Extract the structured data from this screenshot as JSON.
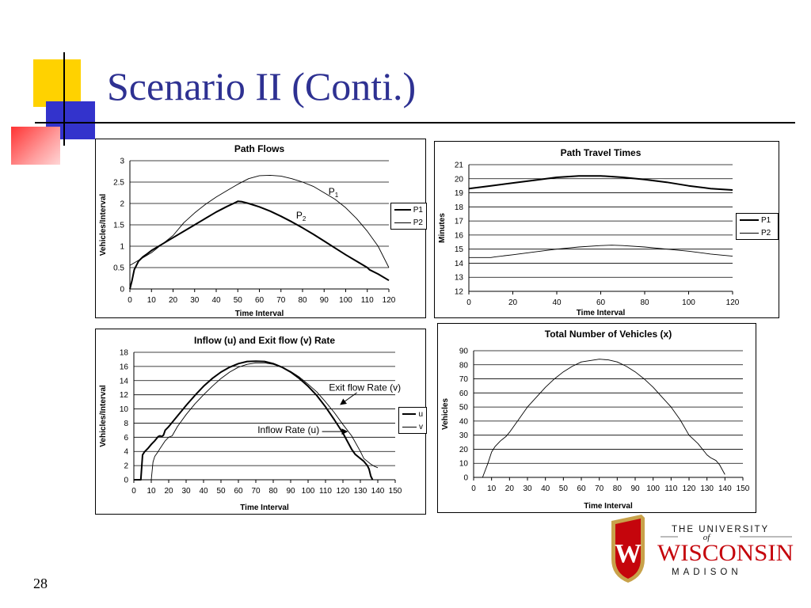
{
  "slide": {
    "title": "Scenario II (Conti.)",
    "page_number": "28"
  },
  "colors": {
    "title": "#2e3192",
    "deco_yellow": "#ffd200",
    "deco_blue": "#3333cc",
    "deco_red": "#ff3333",
    "logo_red": "#c5050c",
    "logo_gold": "#c8a24a"
  },
  "logo": {
    "line1": "THE UNIVERSITY",
    "line2": "of",
    "line3": "WISCONSIN",
    "line4": "MADISON",
    "crest_letter": "W",
    "icon": "university-crest-icon"
  },
  "chart_data": [
    {
      "id": "path-flows",
      "type": "line",
      "title": "Path Flows",
      "xlabel": "Time Interval",
      "ylabel": "Vehicles/Interval",
      "xlim": [
        0,
        120
      ],
      "ylim": [
        0,
        3
      ],
      "xticks": [
        0,
        10,
        20,
        30,
        40,
        50,
        60,
        70,
        80,
        90,
        100,
        110,
        120
      ],
      "yticks": [
        0,
        0.5,
        1,
        1.5,
        2,
        2.5,
        3
      ],
      "ytick_labels": [
        "0",
        "0.5",
        "1",
        "1.5",
        "2",
        "2.5",
        "3"
      ],
      "grid": "horizontal",
      "legend_position": "right",
      "series": [
        {
          "name": "P1",
          "style": "bold",
          "x": [
            0,
            1,
            2,
            4,
            6,
            8,
            10,
            15,
            20,
            25,
            30,
            35,
            40,
            45,
            48,
            50,
            52,
            55,
            60,
            65,
            70,
            75,
            80,
            85,
            90,
            95,
            100,
            105,
            110,
            111,
            115,
            120
          ],
          "y": [
            0,
            0.2,
            0.45,
            0.65,
            0.75,
            0.82,
            0.9,
            1.05,
            1.2,
            1.35,
            1.5,
            1.65,
            1.8,
            1.93,
            2.0,
            2.05,
            2.04,
            2.0,
            1.92,
            1.82,
            1.7,
            1.57,
            1.43,
            1.28,
            1.12,
            0.96,
            0.8,
            0.65,
            0.5,
            0.45,
            0.35,
            0.2
          ]
        },
        {
          "name": "P2",
          "style": "thin",
          "x": [
            0,
            5,
            10,
            15,
            20,
            25,
            30,
            35,
            40,
            45,
            50,
            55,
            60,
            65,
            70,
            75,
            80,
            85,
            90,
            95,
            100,
            105,
            110,
            115,
            120
          ],
          "y": [
            0.55,
            0.7,
            0.85,
            1.05,
            1.25,
            1.55,
            1.78,
            1.98,
            2.15,
            2.3,
            2.45,
            2.58,
            2.65,
            2.66,
            2.64,
            2.58,
            2.5,
            2.4,
            2.25,
            2.1,
            1.9,
            1.65,
            1.35,
            1.0,
            0.5
          ]
        }
      ],
      "annotations": [
        {
          "text": "P",
          "sub": "1",
          "at_x": 92,
          "at_y": 2.2
        },
        {
          "text": "P",
          "sub": "2",
          "at_x": 77,
          "at_y": 1.65
        }
      ]
    },
    {
      "id": "path-travel-times",
      "type": "line",
      "title": "Path Travel Times",
      "xlabel": "Time Interval",
      "ylabel": "Minutes",
      "xlim": [
        0,
        120
      ],
      "ylim": [
        12,
        21
      ],
      "xticks": [
        0,
        20,
        40,
        60,
        80,
        100,
        120
      ],
      "yticks": [
        12,
        13,
        14,
        15,
        16,
        17,
        18,
        19,
        20,
        21
      ],
      "ytick_labels": [
        "12",
        "13",
        "14",
        "15",
        "16",
        "17",
        "18",
        "19",
        "20",
        "21"
      ],
      "grid": "horizontal",
      "legend_position": "right",
      "series": [
        {
          "name": "P1",
          "style": "bold",
          "x": [
            0,
            10,
            20,
            30,
            40,
            50,
            60,
            70,
            80,
            90,
            100,
            110,
            120
          ],
          "y": [
            19.3,
            19.5,
            19.7,
            19.9,
            20.1,
            20.2,
            20.2,
            20.1,
            19.95,
            19.75,
            19.5,
            19.3,
            19.2
          ]
        },
        {
          "name": "P2",
          "style": "thin",
          "x": [
            0,
            10,
            12,
            20,
            30,
            40,
            50,
            60,
            65,
            70,
            80,
            90,
            100,
            110,
            120
          ],
          "y": [
            14.4,
            14.4,
            14.45,
            14.6,
            14.8,
            15.0,
            15.15,
            15.25,
            15.28,
            15.25,
            15.15,
            15.0,
            14.85,
            14.65,
            14.5
          ]
        }
      ]
    },
    {
      "id": "inflow-exit-flow",
      "type": "line",
      "title": "Inflow (u) and Exit flow (v) Rate",
      "xlabel": "Time Interval",
      "ylabel": "Vehicles/Interval",
      "xlim": [
        0,
        150
      ],
      "ylim": [
        0,
        18
      ],
      "xticks": [
        0,
        10,
        20,
        30,
        40,
        50,
        60,
        70,
        80,
        90,
        100,
        110,
        120,
        130,
        140,
        150
      ],
      "yticks": [
        0,
        2,
        4,
        6,
        8,
        10,
        12,
        14,
        16,
        18
      ],
      "ytick_labels": [
        "0",
        "2",
        "4",
        "6",
        "8",
        "10",
        "12",
        "14",
        "16",
        "18"
      ],
      "grid": "horizontal",
      "legend_position": "right",
      "series": [
        {
          "name": "u",
          "style": "bold",
          "x": [
            0,
            4,
            5,
            6,
            8,
            10,
            12,
            14,
            15,
            16,
            17,
            18,
            20,
            25,
            30,
            35,
            40,
            45,
            50,
            55,
            60,
            65,
            70,
            75,
            80,
            85,
            90,
            95,
            100,
            105,
            110,
            115,
            120,
            125,
            127,
            129,
            130,
            132,
            134,
            135,
            136,
            137
          ],
          "y": [
            0,
            0,
            3.5,
            3.9,
            4.4,
            5.0,
            5.5,
            6.1,
            6.2,
            6.1,
            6.3,
            7.0,
            7.5,
            9.0,
            10.5,
            11.9,
            13.2,
            14.3,
            15.2,
            15.9,
            16.4,
            16.7,
            16.75,
            16.7,
            16.4,
            15.9,
            15.2,
            14.3,
            13.2,
            11.9,
            10.3,
            8.5,
            6.6,
            4.3,
            3.6,
            3.2,
            3.0,
            2.6,
            2.0,
            1.5,
            0.5,
            0
          ]
        },
        {
          "name": "v",
          "style": "thin",
          "x": [
            0,
            10,
            11,
            12,
            14,
            15,
            18,
            20,
            22,
            25,
            30,
            35,
            40,
            45,
            50,
            55,
            60,
            65,
            70,
            75,
            80,
            85,
            90,
            95,
            100,
            105,
            110,
            115,
            120,
            125,
            130,
            132,
            134,
            136,
            138,
            140
          ],
          "y": [
            0,
            0,
            2.5,
            3.3,
            4.0,
            4.4,
            5.5,
            6.0,
            6.2,
            7.5,
            9.2,
            10.7,
            12.0,
            13.2,
            14.3,
            15.2,
            15.9,
            16.3,
            16.5,
            16.5,
            16.3,
            15.9,
            15.3,
            14.5,
            13.5,
            12.4,
            11.0,
            9.5,
            7.8,
            6.2,
            4.0,
            3.0,
            2.6,
            2.2,
            1.9,
            1.7
          ]
        }
      ],
      "annotations": [
        {
          "text": "Exit flow Rate (v)",
          "sub": "",
          "at_x": 112,
          "at_y": 12.6
        },
        {
          "text": "Inflow Rate (u)",
          "sub": "",
          "at_x": 71,
          "at_y": 6.6
        }
      ]
    },
    {
      "id": "total-vehicles",
      "type": "line",
      "title": "Total Number of Vehicles (x)",
      "xlabel": "Time Interval",
      "ylabel": "Vehicles",
      "xlim": [
        0,
        150
      ],
      "ylim": [
        0,
        90
      ],
      "xticks": [
        0,
        10,
        20,
        30,
        40,
        50,
        60,
        70,
        80,
        90,
        100,
        110,
        120,
        130,
        140,
        150
      ],
      "yticks": [
        0,
        10,
        20,
        30,
        40,
        50,
        60,
        70,
        80,
        90
      ],
      "ytick_labels": [
        "0",
        "10",
        "20",
        "30",
        "40",
        "50",
        "60",
        "70",
        "80",
        "90"
      ],
      "grid": "horizontal",
      "legend_position": "none",
      "series": [
        {
          "name": "",
          "style": "thin",
          "x": [
            5,
            8,
            10,
            12,
            15,
            18,
            20,
            25,
            30,
            35,
            40,
            45,
            50,
            55,
            60,
            65,
            70,
            75,
            80,
            85,
            90,
            95,
            100,
            105,
            110,
            115,
            120,
            125,
            130,
            132,
            135,
            137,
            140
          ],
          "y": [
            0,
            10,
            18,
            22,
            26,
            29,
            32,
            41,
            50,
            57,
            64,
            70,
            75,
            79,
            82,
            83,
            84,
            83.5,
            82,
            79,
            75,
            70,
            64,
            57,
            50,
            41,
            30,
            24,
            16,
            14,
            12,
            9,
            2
          ]
        }
      ]
    }
  ]
}
